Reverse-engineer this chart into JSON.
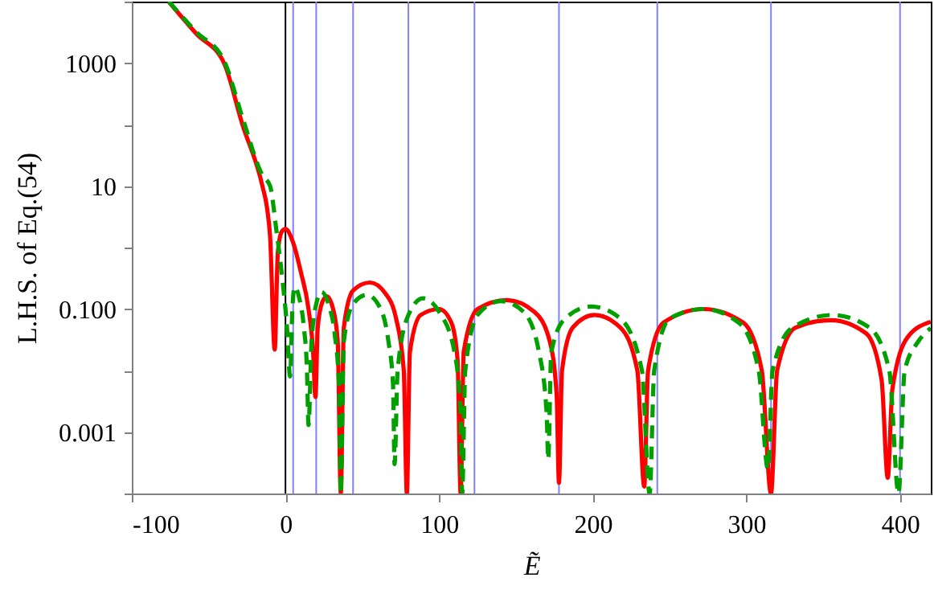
{
  "chart_data": {
    "type": "line",
    "xlabel": "Ẽ",
    "ylabel": "L.H.S.  of  Eq.(54)",
    "log": "y",
    "grid": false,
    "xlim": [
      -100,
      420
    ],
    "xticks": [
      -100,
      0,
      100,
      200,
      300,
      400
    ],
    "ylim": [
      0.0001,
      10000
    ],
    "yticks": [
      {
        "value": 10000,
        "label": null
      },
      1000,
      {
        "value": 100,
        "label": null
      },
      10,
      {
        "value": 1,
        "label": null
      },
      {
        "value": 0.1,
        "label": "0.100"
      },
      {
        "value": 0.01,
        "label": null
      },
      0.001,
      {
        "value": 0.0001,
        "label": null
      }
    ],
    "ref_lines": [
      {
        "axis": "x",
        "value": 0,
        "color": "#000000"
      },
      {
        "axis": "x",
        "value": 5,
        "color": "#8080ff"
      },
      {
        "axis": "x",
        "value": 20,
        "color": "#8080ff"
      },
      {
        "axis": "x",
        "value": 44,
        "color": "#8080ff"
      },
      {
        "axis": "x",
        "value": 80,
        "color": "#8080ff"
      },
      {
        "axis": "x",
        "value": 123,
        "color": "#8080ff"
      },
      {
        "axis": "x",
        "value": 178,
        "color": "#8080ff"
      },
      {
        "axis": "x",
        "value": 242,
        "color": "#8080ff"
      },
      {
        "axis": "x",
        "value": 316,
        "color": "#8080ff"
      },
      {
        "axis": "x",
        "value": 400,
        "color": "#8080ff"
      }
    ],
    "series": [
      {
        "color": "#ff0000",
        "line_style": "solid",
        "x": [
          -76,
          -58,
          -40,
          -28,
          -15,
          -12,
          -10,
          -7,
          -5,
          -2.5,
          0,
          5,
          10,
          15,
          18,
          19.5,
          21,
          24,
          27,
          31,
          34,
          36,
          38,
          44,
          55,
          65,
          72,
          77,
          79,
          81,
          88,
          100,
          108,
          112,
          114,
          116,
          125,
          144,
          162,
          172,
          176.5,
          178,
          180,
          187,
          201,
          218,
          229,
          233.5,
          236,
          246,
          272,
          298,
          310,
          316,
          320,
          332,
          355,
          378,
          388,
          392,
          395,
          405,
          420
        ],
        "values": [
          10000,
          3000,
          1000,
          100,
          10,
          4.4,
          1.5,
          0.022,
          0.8,
          1.8,
          2,
          1.2,
          0.4,
          0.1,
          0.02,
          0.0037,
          0.05,
          0.13,
          0.16,
          0.1,
          0.03,
          0.0001,
          0.05,
          0.2,
          0.27,
          0.18,
          0.07,
          0.01,
          0.0001,
          0.02,
          0.08,
          0.1,
          0.06,
          0.015,
          0.0001,
          0.02,
          0.1,
          0.14,
          0.09,
          0.03,
          0.004,
          0.00015,
          0.01,
          0.05,
          0.08,
          0.05,
          0.01,
          0.00013,
          0.01,
          0.06,
          0.1,
          0.06,
          0.01,
          0.0001,
          0.01,
          0.05,
          0.066,
          0.04,
          0.007,
          0.00018,
          0.005,
          0.035,
          0.062
        ]
      },
      {
        "color": "#00a000",
        "line_style": "dashed",
        "x": [
          -76,
          -58,
          -40,
          -28,
          -15,
          -10,
          -6,
          -2,
          1,
          3,
          4.5,
          6,
          9,
          12,
          14,
          15,
          17,
          20,
          23.5,
          28,
          32,
          35,
          36,
          38,
          44,
          53,
          62,
          67,
          70,
          71,
          73,
          80,
          89.5,
          100,
          110,
          114,
          115,
          117,
          125,
          140,
          155,
          165,
          170,
          171,
          173,
          182,
          199,
          218,
          232,
          237,
          240,
          250,
          272,
          295,
          308,
          314,
          317,
          330,
          356,
          380,
          393,
          399,
          403,
          412,
          420
        ],
        "values": [
          10000,
          3200,
          1100,
          130,
          15,
          10,
          2,
          0.3,
          0.05,
          0.008,
          0.1,
          0.23,
          0.15,
          0.05,
          0.01,
          0.0013,
          0.03,
          0.12,
          0.19,
          0.12,
          0.04,
          0.005,
          0.0001,
          0.03,
          0.12,
          0.17,
          0.1,
          0.03,
          0.006,
          0.0003,
          0.01,
          0.08,
          0.15,
          0.09,
          0.02,
          0.002,
          0.0001,
          0.01,
          0.08,
          0.135,
          0.09,
          0.02,
          0.002,
          0.00036,
          0.02,
          0.07,
          0.11,
          0.07,
          0.01,
          0.0001,
          0.01,
          0.07,
          0.1,
          0.06,
          0.01,
          0.00025,
          0.01,
          0.05,
          0.08,
          0.05,
          0.01,
          0.0001,
          0.01,
          0.03,
          0.049
        ]
      }
    ]
  }
}
